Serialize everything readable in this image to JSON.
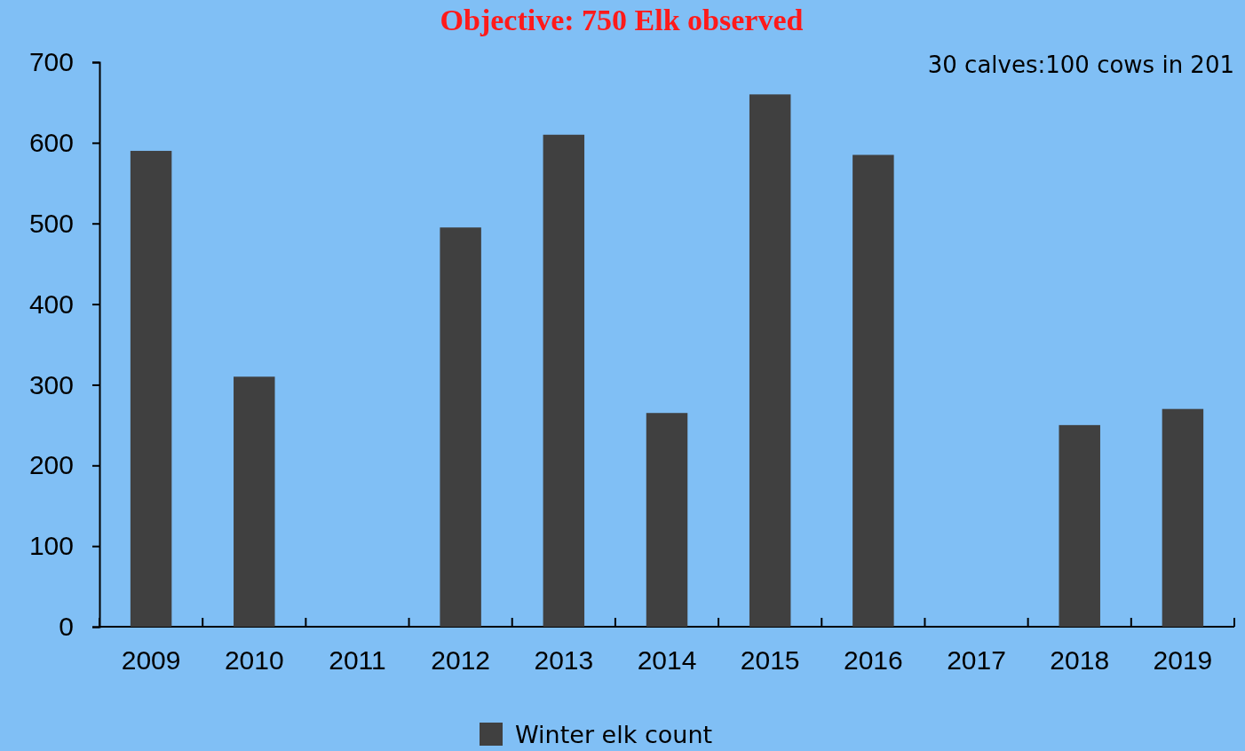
{
  "chart_data": {
    "type": "bar",
    "title": "Objective: 750 Elk observed",
    "categories": [
      "2009",
      "2010",
      "2011",
      "2012",
      "2013",
      "2014",
      "2015",
      "2016",
      "2017",
      "2018",
      "2019"
    ],
    "series": [
      {
        "name": "Winter elk count",
        "color": "#404040",
        "values": [
          590,
          310,
          null,
          495,
          610,
          265,
          660,
          585,
          null,
          250,
          270
        ]
      }
    ],
    "ylim": [
      0,
      700
    ],
    "yticks": [
      0,
      100,
      200,
      300,
      400,
      500,
      600,
      700
    ],
    "grid": false,
    "legend": "bottom",
    "annotations": [
      "30 calves:100 cows in 201"
    ]
  }
}
